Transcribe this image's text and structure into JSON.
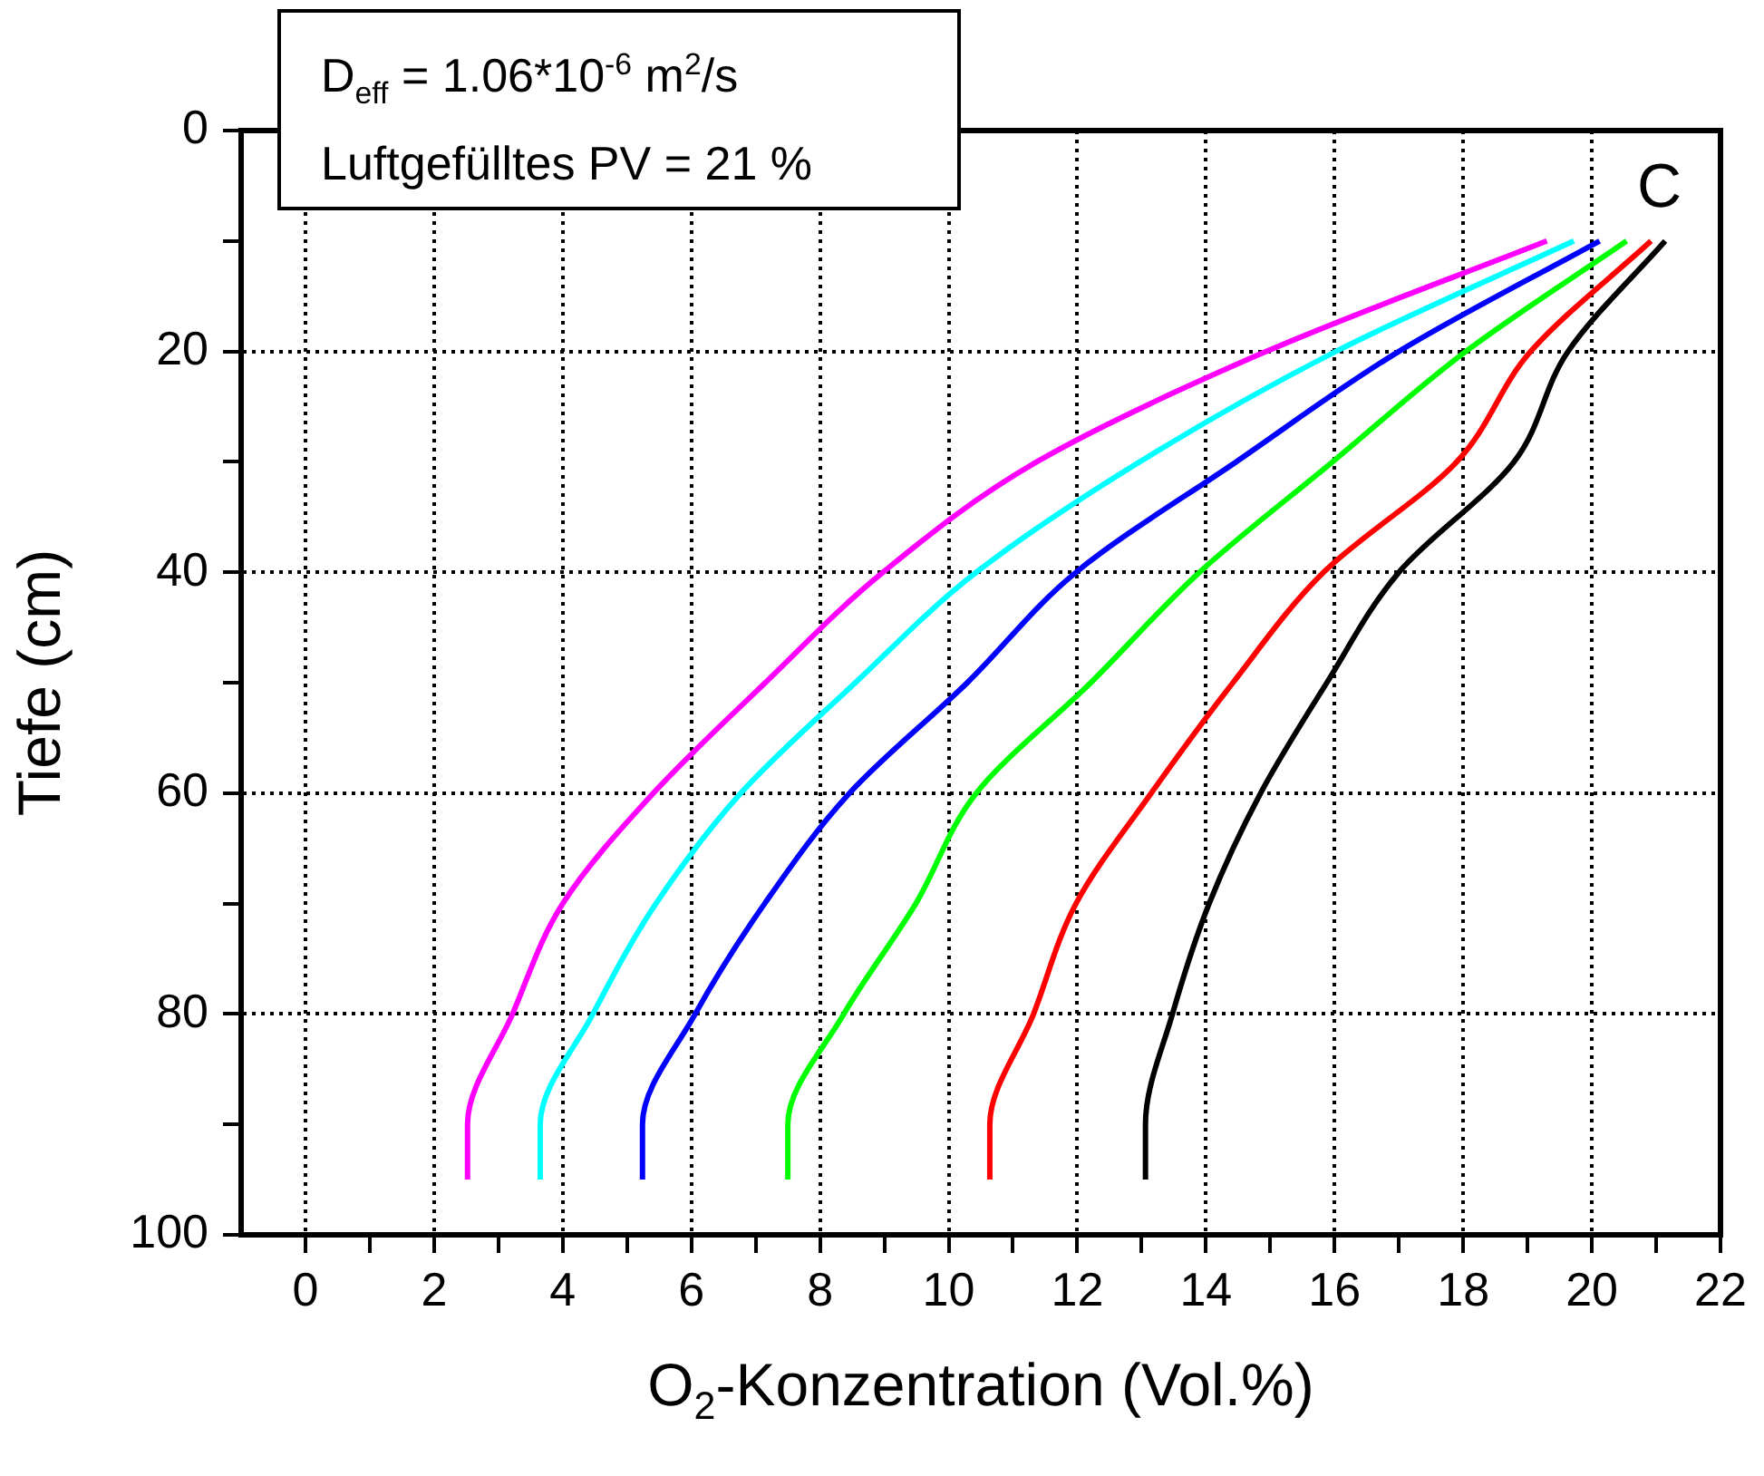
{
  "chart_data": {
    "type": "line",
    "xlabel": "O$_{2}$-Konzentration (Vol.%)",
    "ylabel": "Tiefe (cm)",
    "annotations": [
      "D$_{eff}$ = 1.06*10$^{-6}$ m$^{2}$/s",
      "Luftgefülltes PV = 21 %",
      "C"
    ],
    "xlim": [
      -1,
      22
    ],
    "ylim": [
      100,
      0
    ],
    "xticks": [
      0,
      {
        "value": 1,
        "label": null
      },
      2,
      {
        "value": 3,
        "label": null
      },
      4,
      {
        "value": 5,
        "label": null
      },
      6,
      {
        "value": 7,
        "label": null
      },
      8,
      {
        "value": 9,
        "label": null
      },
      10,
      {
        "value": 11,
        "label": null
      },
      12,
      {
        "value": 13,
        "label": null
      },
      14,
      {
        "value": 15,
        "label": null
      },
      16,
      {
        "value": 17,
        "label": null
      },
      18,
      {
        "value": 19,
        "label": null
      },
      20,
      {
        "value": 21,
        "label": null
      },
      22
    ],
    "yticks": [
      0,
      {
        "value": 10,
        "label": null
      },
      20,
      {
        "value": 30,
        "label": null
      },
      40,
      {
        "value": 50,
        "label": null
      },
      60,
      {
        "value": 70,
        "label": null
      },
      80,
      {
        "value": 90,
        "label": null
      },
      100
    ],
    "grid": true,
    "legend": false,
    "marker": "none",
    "line_style": "solid",
    "series": [
      {
        "color": "#ff00ff",
        "x": [
          19.3,
          14.94,
          11.37,
          8.98,
          7.15,
          5.41,
          4.0,
          3.22,
          2.52,
          2.52
        ],
        "values": [
          10,
          20,
          30,
          40,
          50,
          60,
          70,
          80,
          90,
          95
        ]
      },
      {
        "color": "#00ffff",
        "x": [
          19.72,
          16.02,
          12.97,
          10.43,
          8.55,
          6.77,
          5.45,
          4.47,
          3.65,
          3.65
        ],
        "values": [
          10,
          20,
          30,
          40,
          50,
          60,
          70,
          80,
          90,
          95
        ]
      },
      {
        "color": "#0000ff",
        "x": [
          20.12,
          17.0,
          14.47,
          11.98,
          10.29,
          8.46,
          7.14,
          6.06,
          5.24,
          5.24
        ],
        "values": [
          10,
          20,
          30,
          40,
          50,
          60,
          70,
          80,
          90,
          95
        ]
      },
      {
        "color": "#00ff00",
        "x": [
          20.54,
          18.04,
          15.97,
          13.9,
          12.21,
          10.43,
          9.49,
          8.37,
          7.5,
          7.5
        ],
        "values": [
          10,
          20,
          30,
          40,
          50,
          60,
          70,
          80,
          90,
          95
        ]
      },
      {
        "color": "#ff0000",
        "x": [
          20.92,
          19.05,
          17.9,
          15.83,
          14.42,
          13.15,
          11.98,
          11.32,
          10.64,
          10.64
        ],
        "values": [
          10,
          20,
          30,
          40,
          50,
          60,
          70,
          80,
          90,
          95
        ]
      },
      {
        "color": "#000000",
        "x": [
          21.14,
          19.63,
          18.79,
          17.0,
          15.88,
          14.85,
          14.05,
          13.48,
          13.06,
          13.06
        ],
        "values": [
          10,
          20,
          30,
          40,
          50,
          60,
          70,
          80,
          90,
          95
        ]
      }
    ]
  }
}
